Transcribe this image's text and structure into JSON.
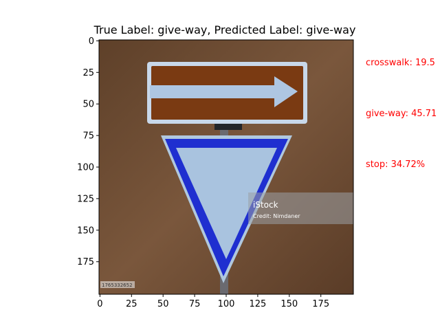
{
  "figure": {
    "title": "True Label: give-way, Predicted Label: give-way"
  },
  "chart_data": {
    "type": "image",
    "title": "True Label: give-way, Predicted Label: give-way",
    "xlim": [
      0,
      200
    ],
    "ylim": [
      200,
      0
    ],
    "x_ticks": [
      0,
      25,
      50,
      75,
      100,
      125,
      150,
      175
    ],
    "y_ticks": [
      0,
      25,
      50,
      75,
      100,
      125,
      150,
      175
    ],
    "predictions": [
      {
        "label": "crosswalk",
        "text": "crosswalk: 19.5"
      },
      {
        "label": "give-way",
        "text": "give-way: 45.71"
      },
      {
        "label": "stop",
        "text": "stop: 34.72%"
      }
    ],
    "image_content": {
      "watermark_brand": "iStock",
      "watermark_credit": "Credit: Nimdaner",
      "image_id": "1765332652"
    },
    "colors": {
      "prediction_text": "#ff0000",
      "background_wall": "#6b4a33",
      "arrow_sign": "#7a3a12",
      "yield_border": "#1f2fd0",
      "yield_inner": "#a9c3df"
    }
  }
}
